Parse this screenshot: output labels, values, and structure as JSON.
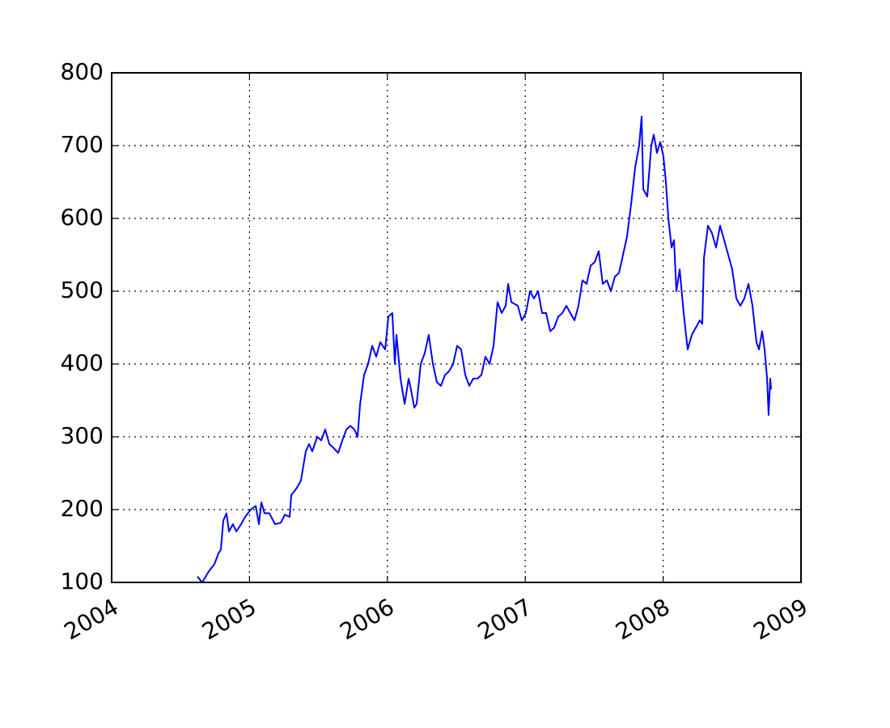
{
  "chart_data": {
    "type": "line",
    "x": [
      2004.622,
      2004.657,
      2004.704,
      2004.745,
      2004.775,
      2004.792,
      2004.81,
      2004.833,
      2004.851,
      2004.88,
      2004.904,
      2004.939,
      2004.968,
      2005.009,
      2005.045,
      2005.068,
      2005.086,
      2005.109,
      2005.144,
      2005.185,
      2005.227,
      2005.256,
      2005.291,
      2005.303,
      2005.344,
      2005.373,
      2005.408,
      2005.432,
      2005.455,
      2005.491,
      2005.52,
      2005.549,
      2005.579,
      2005.608,
      2005.643,
      2005.673,
      2005.702,
      2005.731,
      2005.761,
      2005.784,
      2005.802,
      2005.831,
      2005.86,
      2005.89,
      2005.919,
      2005.948,
      2005.984,
      2006.007,
      2006.036,
      2006.054,
      2006.066,
      2006.095,
      2006.125,
      2006.154,
      2006.171,
      2006.195,
      2006.212,
      2006.242,
      2006.271,
      2006.3,
      2006.33,
      2006.359,
      2006.388,
      2006.418,
      2006.447,
      2006.477,
      2006.506,
      2006.535,
      2006.565,
      2006.594,
      2006.623,
      2006.653,
      2006.682,
      2006.711,
      2006.741,
      2006.77,
      2006.799,
      2006.829,
      2006.858,
      2006.876,
      2006.899,
      2006.946,
      2006.975,
      2007.005,
      2007.034,
      2007.063,
      2007.093,
      2007.122,
      2007.151,
      2007.181,
      2007.21,
      2007.239,
      2007.269,
      2007.298,
      2007.327,
      2007.357,
      2007.386,
      2007.415,
      2007.445,
      2007.474,
      2007.504,
      2007.533,
      2007.562,
      2007.592,
      2007.621,
      2007.65,
      2007.68,
      2007.709,
      2007.738,
      2007.768,
      2007.797,
      2007.826,
      2007.844,
      2007.856,
      2007.885,
      2007.914,
      2007.932,
      2007.955,
      2007.979,
      2008.002,
      2008.02,
      2008.038,
      2008.061,
      2008.079,
      2008.096,
      2008.12,
      2008.149,
      2008.178,
      2008.208,
      2008.237,
      2008.266,
      2008.284,
      2008.296,
      2008.325,
      2008.354,
      2008.384,
      2008.413,
      2008.443,
      2008.472,
      2008.501,
      2008.531,
      2008.56,
      2008.589,
      2008.619,
      2008.648,
      2008.677,
      2008.695,
      2008.718,
      2008.736,
      2008.754,
      2008.765,
      2008.777,
      2008.783
    ],
    "series": [
      {
        "color": "#0000ff",
        "values": [
          108,
          100,
          115,
          125,
          140,
          145,
          185,
          195,
          170,
          180,
          170,
          180,
          190,
          200,
          205,
          180,
          210,
          195,
          195,
          180,
          182,
          193,
          190,
          220,
          230,
          240,
          280,
          290,
          280,
          300,
          295,
          310,
          290,
          285,
          278,
          295,
          310,
          315,
          310,
          300,
          345,
          385,
          400,
          425,
          410,
          430,
          420,
          465,
          470,
          400,
          440,
          380,
          345,
          380,
          365,
          340,
          345,
          400,
          415,
          440,
          400,
          375,
          370,
          385,
          390,
          400,
          425,
          420,
          385,
          370,
          380,
          380,
          385,
          410,
          400,
          425,
          485,
          470,
          480,
          510,
          485,
          480,
          460,
          470,
          500,
          490,
          500,
          470,
          470,
          445,
          450,
          465,
          470,
          480,
          470,
          460,
          480,
          515,
          510,
          535,
          540,
          555,
          510,
          515,
          500,
          520,
          525,
          550,
          575,
          620,
          670,
          700,
          740,
          640,
          630,
          700,
          715,
          690,
          705,
          685,
          650,
          600,
          560,
          570,
          500,
          530,
          470,
          420,
          440,
          450,
          460,
          455,
          545,
          590,
          580,
          560,
          590,
          570,
          550,
          530,
          490,
          480,
          490,
          510,
          480,
          430,
          420,
          445,
          420,
          380,
          330,
          380,
          365
        ]
      }
    ],
    "xlim": [
      2004,
      2009
    ],
    "xticks": [
      2004,
      2005,
      2006,
      2007,
      2008,
      2009
    ],
    "ylim": [
      100,
      800
    ],
    "yticks": [
      100,
      200,
      300,
      400,
      500,
      600,
      700,
      800
    ],
    "grid": true
  }
}
